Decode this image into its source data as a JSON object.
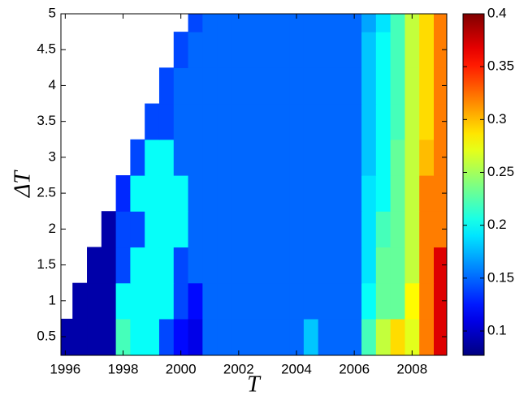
{
  "chart_data": {
    "type": "contour",
    "colormap": "jet",
    "xlabel": "T",
    "ylabel": "ΔT",
    "x": [
      1996,
      1996.5,
      1997,
      1997.5,
      1998,
      1998.5,
      1999,
      1999.5,
      2000,
      2000.5,
      2001,
      2001.5,
      2002,
      2002.5,
      2003,
      2003.5,
      2004,
      2004.5,
      2005,
      2005.5,
      2006,
      2006.5,
      2007,
      2007.5,
      2008,
      2008.5,
      2009
    ],
    "y": [
      0.5,
      1,
      1.5,
      2,
      2.5,
      3,
      3.5,
      4,
      4.5,
      5
    ],
    "z": [
      [
        0.09,
        0.09,
        0.09,
        0.09,
        0.22,
        0.2,
        0.2,
        0.14,
        0.12,
        0.11,
        0.15,
        0.15,
        0.15,
        0.15,
        0.15,
        0.15,
        0.15,
        0.18,
        0.15,
        0.15,
        0.15,
        0.22,
        0.26,
        0.29,
        0.27,
        0.32,
        0.37
      ],
      [
        null,
        0.09,
        0.09,
        0.09,
        0.2,
        0.2,
        0.2,
        0.2,
        0.14,
        0.12,
        0.15,
        0.15,
        0.15,
        0.15,
        0.15,
        0.15,
        0.15,
        0.15,
        0.15,
        0.15,
        0.15,
        0.2,
        0.23,
        0.23,
        0.28,
        0.32,
        0.37
      ],
      [
        null,
        null,
        0.09,
        0.09,
        0.14,
        0.2,
        0.2,
        0.2,
        0.14,
        0.15,
        0.15,
        0.15,
        0.15,
        0.15,
        0.15,
        0.15,
        0.15,
        0.15,
        0.15,
        0.15,
        0.15,
        0.19,
        0.23,
        0.23,
        0.26,
        0.32,
        0.37
      ],
      [
        null,
        null,
        null,
        0.09,
        0.14,
        0.14,
        0.2,
        0.2,
        0.2,
        0.15,
        0.15,
        0.15,
        0.15,
        0.15,
        0.15,
        0.15,
        0.15,
        0.15,
        0.15,
        0.15,
        0.15,
        0.19,
        0.22,
        0.23,
        0.26,
        0.32,
        0.32
      ],
      [
        null,
        null,
        null,
        null,
        0.13,
        0.2,
        0.2,
        0.2,
        0.2,
        0.15,
        0.15,
        0.15,
        0.15,
        0.15,
        0.15,
        0.15,
        0.15,
        0.15,
        0.15,
        0.15,
        0.15,
        0.19,
        0.2,
        0.23,
        0.26,
        0.32,
        0.32
      ],
      [
        null,
        null,
        null,
        null,
        null,
        0.14,
        0.2,
        0.2,
        0.15,
        0.15,
        0.15,
        0.15,
        0.15,
        0.15,
        0.15,
        0.15,
        0.15,
        0.15,
        0.15,
        0.15,
        0.15,
        0.18,
        0.2,
        0.23,
        0.26,
        0.3,
        0.32
      ],
      [
        null,
        null,
        null,
        null,
        null,
        null,
        0.14,
        0.14,
        0.15,
        0.15,
        0.15,
        0.15,
        0.15,
        0.15,
        0.15,
        0.15,
        0.15,
        0.15,
        0.15,
        0.15,
        0.15,
        0.18,
        0.2,
        0.22,
        0.26,
        0.29,
        0.32
      ],
      [
        null,
        null,
        null,
        null,
        null,
        null,
        null,
        0.14,
        0.15,
        0.15,
        0.15,
        0.15,
        0.15,
        0.15,
        0.15,
        0.15,
        0.15,
        0.15,
        0.15,
        0.15,
        0.15,
        0.18,
        0.2,
        0.22,
        0.26,
        0.29,
        0.32
      ],
      [
        null,
        null,
        null,
        null,
        null,
        null,
        null,
        null,
        0.14,
        0.15,
        0.15,
        0.15,
        0.15,
        0.15,
        0.15,
        0.15,
        0.15,
        0.15,
        0.15,
        0.15,
        0.15,
        0.18,
        0.2,
        0.22,
        0.26,
        0.29,
        0.32
      ],
      [
        null,
        null,
        null,
        null,
        null,
        null,
        null,
        null,
        null,
        0.14,
        0.15,
        0.15,
        0.15,
        0.15,
        0.15,
        0.15,
        0.15,
        0.15,
        0.15,
        0.15,
        0.15,
        0.17,
        0.19,
        0.22,
        0.26,
        0.29,
        0.32
      ]
    ],
    "xlim": [
      1995.85,
      2009.2
    ],
    "ylim": [
      0.24,
      5
    ],
    "xticks": [
      1996,
      1998,
      2000,
      2002,
      2004,
      2006,
      2008
    ],
    "yticks": [
      0.5,
      1,
      1.5,
      2,
      2.5,
      3,
      3.5,
      4,
      4.5,
      5
    ],
    "colorbar": {
      "clim": [
        0.077,
        0.4
      ],
      "ticks": [
        0.1,
        0.15,
        0.2,
        0.25,
        0.3,
        0.35,
        0.4
      ]
    }
  }
}
